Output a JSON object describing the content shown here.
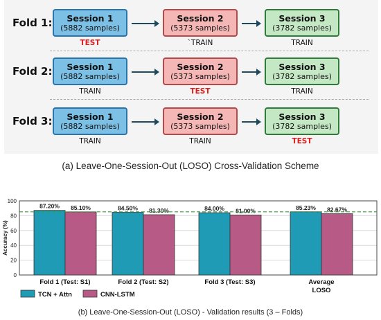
{
  "scheme": {
    "folds": [
      {
        "label": "Fold 1:",
        "sessions": [
          {
            "title": "Session 1",
            "samples": "(5882 samples)",
            "role": "TEST"
          },
          {
            "title": "Session 2",
            "samples": "(5373 samples)",
            "role": "`TRAIN"
          },
          {
            "title": "Session 3",
            "samples": "(3782 samples)",
            "role": "TRAIN"
          }
        ]
      },
      {
        "label": "Fold 2:",
        "sessions": [
          {
            "title": "Session 1",
            "samples": "(5882 samples)",
            "role": "TRAIN"
          },
          {
            "title": "Session 2",
            "samples": "(5373 samples)",
            "role": "TEST"
          },
          {
            "title": "Session 3",
            "samples": "(3782 samples)",
            "role": "TRAIN"
          }
        ]
      },
      {
        "label": "Fold 3:",
        "sessions": [
          {
            "title": "Session 1",
            "samples": "(5882 samples)",
            "role": "TRAIN"
          },
          {
            "title": "Session 2",
            "samples": "(5373 samples)",
            "role": "TRAIN"
          },
          {
            "title": "Session 3",
            "samples": "(3782 samples)",
            "role": "TEST"
          }
        ]
      }
    ],
    "caption": "(a) Leave-One-Session-Out (LOSO) Cross-Validation Scheme",
    "colors": {
      "session1": "#7cc0e6",
      "session2": "#f5b6b6",
      "session3": "#c5e8c4",
      "test_text": "#e01b1b"
    }
  },
  "chart_data": {
    "type": "bar",
    "categories": [
      "Fold 1  (Test: S1)",
      "Fold 2  (Test: S2)",
      "Fold 3  (Test: S3)",
      "Average LOSO"
    ],
    "category_lines": [
      [
        "Fold 1  (Test: S1)"
      ],
      [
        "Fold 2  (Test: S2)"
      ],
      [
        "Fold 3  (Test: S3)"
      ],
      [
        "Average",
        "LOSO"
      ]
    ],
    "series": [
      {
        "name": "TCN + Attn",
        "values": [
          87.2,
          84.5,
          84.0,
          85.23
        ],
        "labels": [
          "87.20%",
          "84.50%",
          "84.00%",
          "85.23%"
        ],
        "color": "#1f9bb5"
      },
      {
        "name": "CNN-LSTM",
        "values": [
          85.1,
          81.3,
          81.0,
          82.67
        ],
        "labels": [
          "85.10%",
          "81.30%",
          "81.00%",
          "82.67%"
        ],
        "color": "#b85a86"
      }
    ],
    "ylabel": "Accuracy (%)",
    "ylim": [
      0,
      100
    ],
    "yticks": [
      0,
      20,
      40,
      60,
      80,
      100
    ],
    "ytick_labels": [
      "0",
      "20",
      "40",
      "60",
      "80",
      "100"
    ],
    "reference_line": 85.23,
    "reference_color": "#3a9a3a",
    "grid": true,
    "legend_placement": "bottom-left"
  },
  "caption_b": "(b) Leave-One-Session-Out (LOSO) - Validation results (3 – Folds)"
}
